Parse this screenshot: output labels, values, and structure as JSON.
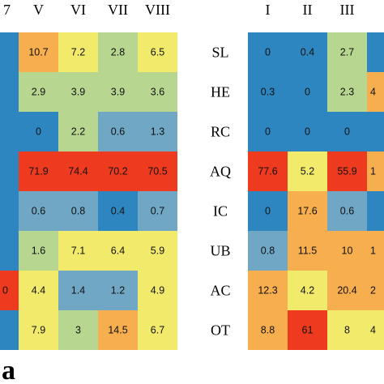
{
  "chart_data": [
    {
      "type": "heatmap",
      "panel_label": "a",
      "columns": [
        "V",
        "VI",
        "VII",
        "VIII"
      ],
      "rows": [
        "SL",
        "HE",
        "RC",
        "AQ",
        "IC",
        "UB",
        "AC",
        "OT"
      ],
      "partial_left_header": "7",
      "partial_left_values": [
        "",
        "",
        "",
        "",
        "",
        "",
        "0",
        ""
      ],
      "values": [
        [
          "10.7",
          "7.2",
          "2.8",
          "6.5"
        ],
        [
          "2.9",
          "3.9",
          "3.9",
          "3.6"
        ],
        [
          "0",
          "2.2",
          "0.6",
          "1.3"
        ],
        [
          "71.9",
          "74.4",
          "70.2",
          "70.5"
        ],
        [
          "0.6",
          "0.8",
          "0.4",
          "0.7"
        ],
        [
          "1.6",
          "7.1",
          "6.4",
          "5.9"
        ],
        [
          "4.4",
          "1.4",
          "1.2",
          "4.9"
        ],
        [
          "7.9",
          "3",
          "14.5",
          "6.7"
        ]
      ]
    },
    {
      "type": "heatmap",
      "columns": [
        "I",
        "II",
        "III"
      ],
      "rows": [
        "SL",
        "HE",
        "RC",
        "AQ",
        "IC",
        "UB",
        "AC",
        "OT"
      ],
      "values": [
        [
          "0",
          "0.4",
          "2.7"
        ],
        [
          "0.3",
          "0",
          "2.3"
        ],
        [
          "0",
          "0",
          "0"
        ],
        [
          "77.6",
          "5.2",
          "55.9"
        ],
        [
          "0",
          "17.6",
          "0.6"
        ],
        [
          "0.8",
          "11.5",
          "10"
        ],
        [
          "12.3",
          "4.2",
          "20.4"
        ],
        [
          "8.8",
          "61",
          "8"
        ]
      ],
      "partial_right_values": [
        "",
        "4",
        "",
        "1",
        "",
        "1",
        "2",
        "4"
      ]
    }
  ],
  "colors": {
    "scale": [
      "#2e86c1",
      "#6fa7c4",
      "#b7d68f",
      "#f2ea6a",
      "#f6ae4f",
      "#ee3a1f"
    ]
  }
}
